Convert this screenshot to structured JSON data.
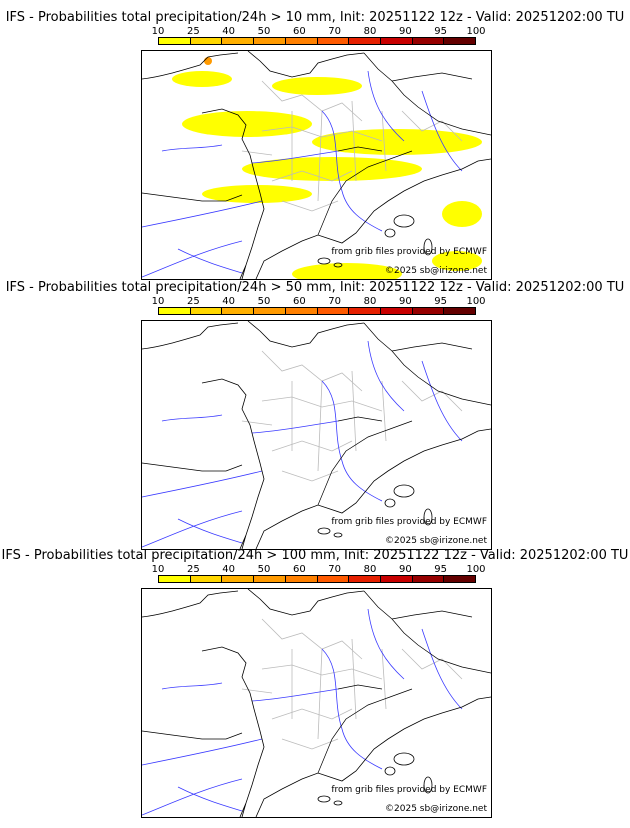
{
  "colorbar": {
    "ticks": [
      "10",
      "25",
      "40",
      "50",
      "60",
      "70",
      "80",
      "90",
      "95",
      "100"
    ],
    "colors": [
      "#ffff00",
      "#ffd700",
      "#ffb000",
      "#ff9a00",
      "#ff8000",
      "#ff5a00",
      "#e62000",
      "#c80000",
      "#960000",
      "#640000"
    ]
  },
  "credits": {
    "source": "from grib files provided by ECMWF",
    "copyright": "©2025 sb@irizone.net"
  },
  "panels": [
    {
      "title": "IFS - Probabilities total precipitation/24h > 10 mm, Init: 20251122 12z - Valid: 20251202:00 TU",
      "shading": "wide"
    },
    {
      "title": "IFS - Probabilities total precipitation/24h > 50 mm, Init: 20251122 12z - Valid: 20251202:00 TU",
      "shading": "none"
    },
    {
      "title": "IFS - Probabilities total precipitation/24h > 100 mm, Init: 20251122 12z - Valid: 20251202:00 TU",
      "shading": "none"
    }
  ]
}
